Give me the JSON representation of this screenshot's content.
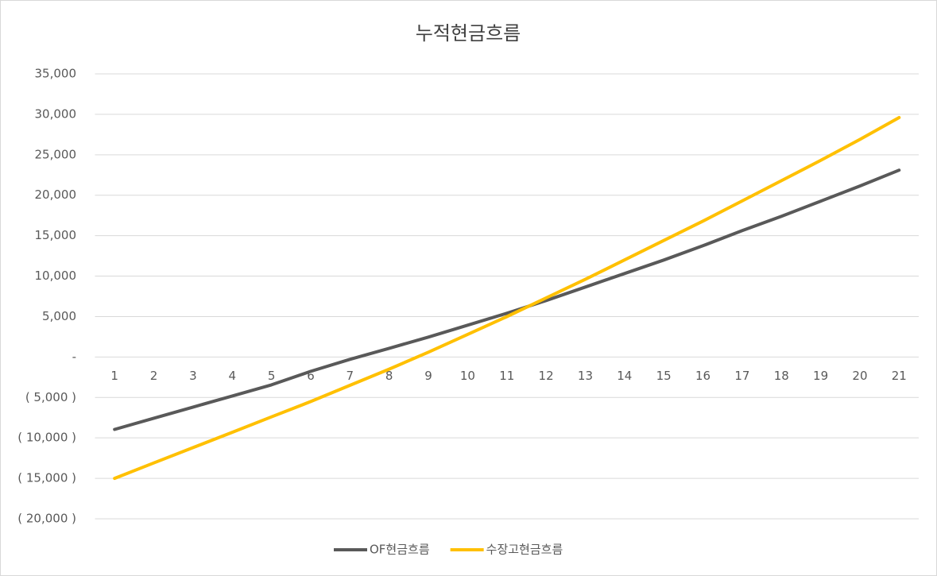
{
  "chart_data": {
    "type": "line",
    "title": "누적현금흐름",
    "categories": [
      "1",
      "2",
      "3",
      "4",
      "5",
      "6",
      "7",
      "8",
      "9",
      "10",
      "11",
      "12",
      "13",
      "14",
      "15",
      "16",
      "17",
      "18",
      "19",
      "20",
      "21"
    ],
    "series": [
      {
        "name": "OF현금흐름",
        "color": "#595959",
        "values": [
          -8950,
          -7570,
          -6190,
          -4820,
          -3440,
          -1770,
          -290,
          1080,
          2460,
          3930,
          5410,
          6980,
          8650,
          10320,
          11990,
          13760,
          15630,
          17400,
          19270,
          21140,
          23100
        ]
      },
      {
        "name": "수장고현금흐름",
        "color": "#ffc000",
        "values": [
          -15000,
          -13100,
          -11200,
          -9300,
          -7400,
          -5500,
          -3500,
          -1500,
          600,
          2800,
          5000,
          7300,
          9600,
          12000,
          14400,
          16800,
          19300,
          21800,
          24300,
          26900,
          29600
        ]
      }
    ],
    "ylim": [
      -20000,
      35000
    ],
    "yticks": [
      {
        "value": -20000,
        "label": "( 20,000 )"
      },
      {
        "value": -15000,
        "label": "( 15,000 )"
      },
      {
        "value": -10000,
        "label": "( 10,000 )"
      },
      {
        "value": -5000,
        "label": "( 5,000 )"
      },
      {
        "value": 0,
        "label": "-"
      },
      {
        "value": 5000,
        "label": "5,000"
      },
      {
        "value": 10000,
        "label": "10,000"
      },
      {
        "value": 15000,
        "label": "15,000"
      },
      {
        "value": 20000,
        "label": "20,000"
      },
      {
        "value": 25000,
        "label": "25,000"
      },
      {
        "value": 30000,
        "label": "30,000"
      },
      {
        "value": 35000,
        "label": "35,000"
      }
    ],
    "grid": true
  }
}
